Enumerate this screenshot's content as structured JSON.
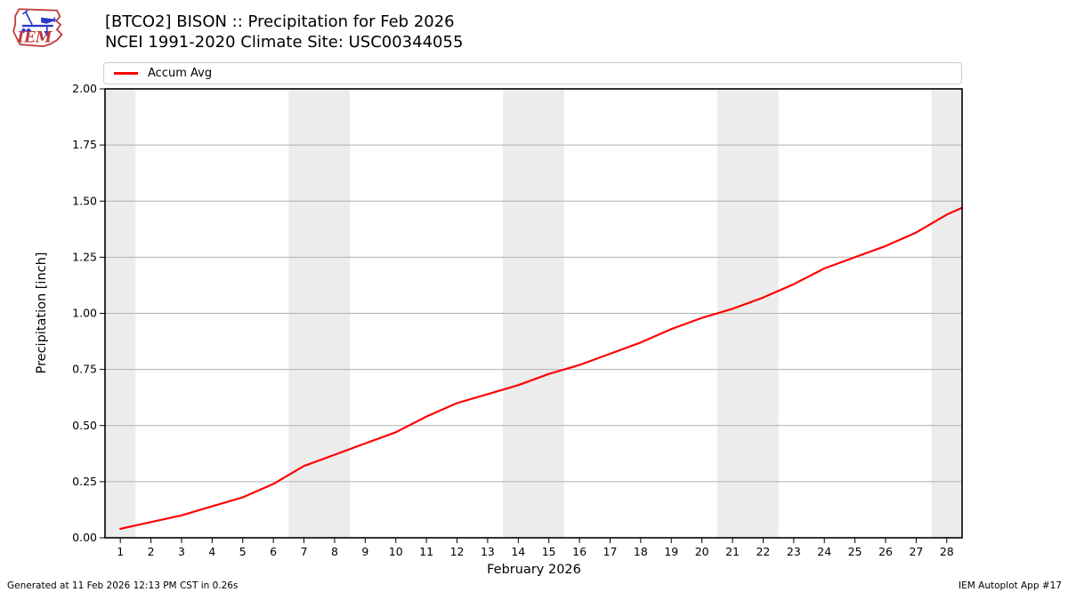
{
  "colors": {
    "accent_red": "#ff0000",
    "grid": "#b0b0b0",
    "weekend_band": "#ececec",
    "frame": "#000000",
    "legend_border": "#cccccc",
    "logo_red": "#c43a3c",
    "logo_blue": "#2a38c8"
  },
  "header": {
    "title_line1": "[BTCO2] BISON :: Precipitation for Feb 2026",
    "title_line2": "NCEI 1991-2020 Climate Site: USC00344055",
    "logo_text": "IEM"
  },
  "legend": {
    "label": "Accum Avg"
  },
  "axes": {
    "xlabel": "February 2026",
    "ylabel": "Precipitation [inch]"
  },
  "footer": {
    "generated": "Generated at 11 Feb 2026 12:13 PM CST in 0.26s",
    "app": "IEM Autoplot App #17"
  },
  "chart_data": {
    "type": "line",
    "title": "[BTCO2] BISON :: Precipitation for Feb 2026",
    "subtitle": "NCEI 1991-2020 Climate Site: USC00344055",
    "xlabel": "February 2026",
    "ylabel": "Precipitation [inch]",
    "xlim": [
      0.5,
      28.5
    ],
    "ylim": [
      0.0,
      2.0
    ],
    "grid": "horizontal",
    "legend_position": "top",
    "xticks": [
      1,
      2,
      3,
      4,
      5,
      6,
      7,
      8,
      9,
      10,
      11,
      12,
      13,
      14,
      15,
      16,
      17,
      18,
      19,
      20,
      21,
      22,
      23,
      24,
      25,
      26,
      27,
      28
    ],
    "yticks": [
      0.0,
      0.25,
      0.5,
      0.75,
      1.0,
      1.25,
      1.5,
      1.75,
      2.0
    ],
    "ytick_labels": [
      "0.00",
      "0.25",
      "0.50",
      "0.75",
      "1.00",
      "1.25",
      "1.50",
      "1.75",
      "2.00"
    ],
    "weekend_bands": [
      [
        0.5,
        1.5
      ],
      [
        6.5,
        8.5
      ],
      [
        13.5,
        15.5
      ],
      [
        20.5,
        22.5
      ],
      [
        27.5,
        28.5
      ]
    ],
    "series": [
      {
        "name": "Accum Avg",
        "color": "#ff0000",
        "x": [
          1,
          2,
          3,
          4,
          5,
          6,
          7,
          8,
          9,
          10,
          11,
          12,
          13,
          14,
          15,
          16,
          17,
          18,
          19,
          20,
          21,
          22,
          23,
          24,
          25,
          26,
          27,
          28,
          28.5
        ],
        "y": [
          0.04,
          0.07,
          0.1,
          0.14,
          0.18,
          0.24,
          0.32,
          0.37,
          0.42,
          0.47,
          0.54,
          0.6,
          0.64,
          0.68,
          0.73,
          0.77,
          0.82,
          0.87,
          0.93,
          0.98,
          1.02,
          1.07,
          1.13,
          1.2,
          1.25,
          1.3,
          1.36,
          1.44,
          1.47
        ]
      }
    ]
  }
}
